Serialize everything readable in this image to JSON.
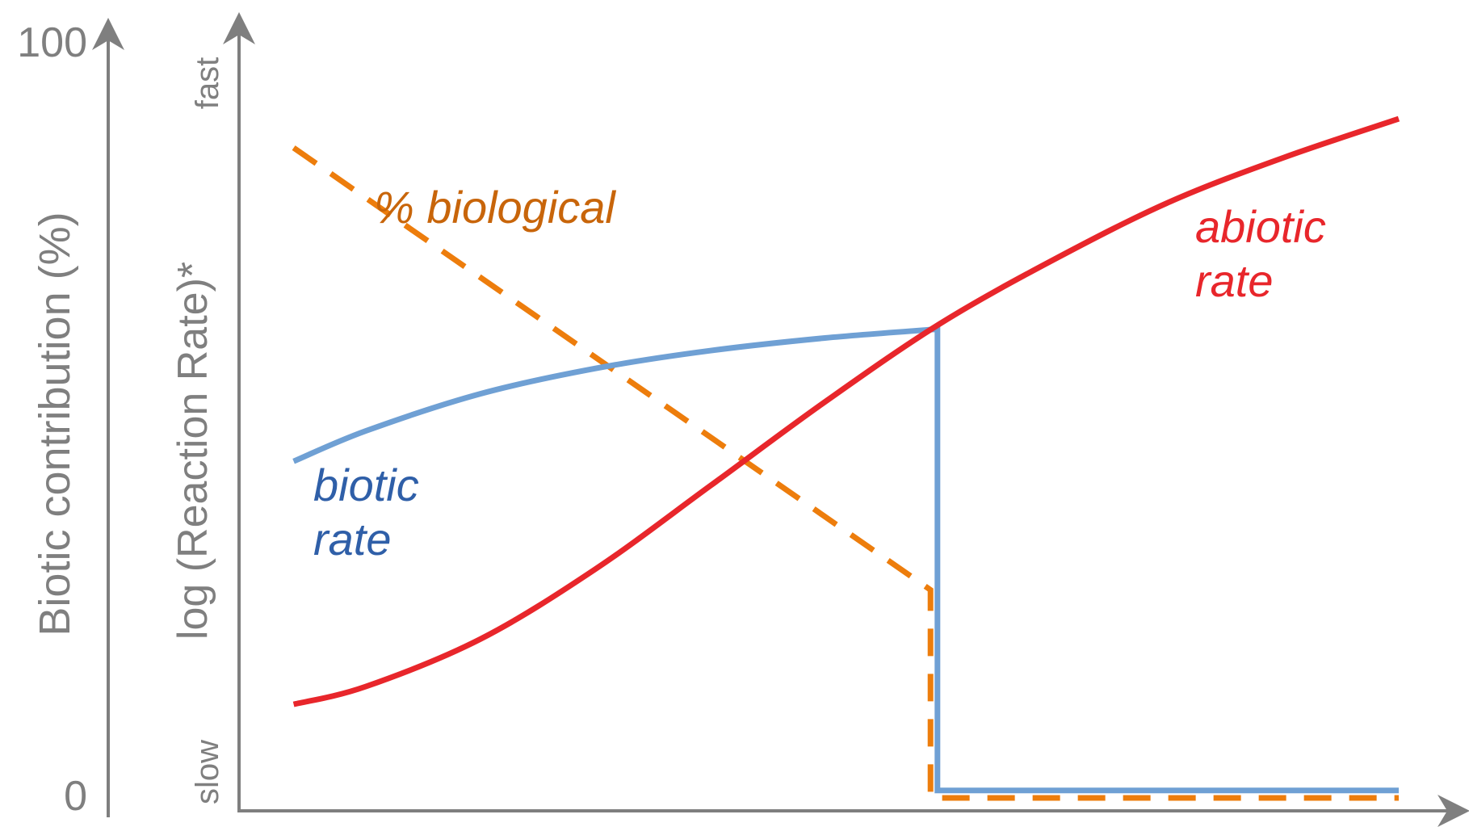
{
  "chart_data": {
    "type": "line",
    "title": "",
    "xlabel": "",
    "ylabel": "log (Reaction Rate)*",
    "ylabel_secondary": "Biotic contribution (%)",
    "y_secondary_ticks": [
      "0",
      "100"
    ],
    "y_qualitative_ticks": {
      "low": "slow",
      "high": "fast"
    },
    "xlim": [
      0,
      1
    ],
    "ylim": [
      0,
      1
    ],
    "grid": false,
    "legend": "inline labels",
    "series": [
      {
        "name": "% biological",
        "label_display": "% biological",
        "color": "#ed7d0c",
        "style": "dashed",
        "x": [
          0.037,
          0.592,
          0.592,
          1.0
        ],
        "y": [
          0.875,
          0.28,
          0.0,
          0.0
        ]
      },
      {
        "name": "biotic rate",
        "label_display": [
          "biotic",
          "rate"
        ],
        "color": "#6fa0d4",
        "style": "solid",
        "x": [
          0.037,
          0.1,
          0.2,
          0.3,
          0.4,
          0.5,
          0.598,
          0.598,
          1.0
        ],
        "y": [
          0.453,
          0.494,
          0.544,
          0.578,
          0.602,
          0.619,
          0.631,
          0.01,
          0.01
        ]
      },
      {
        "name": "abiotic rate",
        "label_display": [
          "abiotic",
          "rate"
        ],
        "color": "#e8262b",
        "style": "solid",
        "x": [
          0.037,
          0.1,
          0.2,
          0.3,
          0.4,
          0.5,
          0.6,
          0.7,
          0.8,
          0.9,
          1.0
        ],
        "y": [
          0.126,
          0.15,
          0.214,
          0.308,
          0.42,
          0.533,
          0.638,
          0.725,
          0.802,
          0.862,
          0.914
        ]
      }
    ]
  }
}
